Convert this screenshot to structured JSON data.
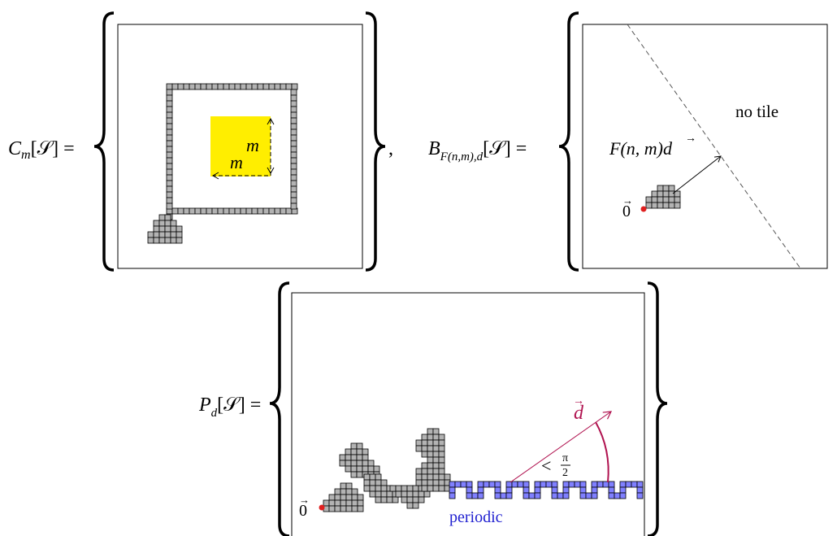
{
  "panels": {
    "C": {
      "lhs_main": "C",
      "lhs_sub": "m",
      "lhs_arg": "[𝒮] =",
      "m_vertical": "m",
      "m_horizontal": "m",
      "trailing_comma": ","
    },
    "B": {
      "lhs_main": "B",
      "lhs_sub": "F(n,m),",
      "lhs_sub_vec": "d",
      "lhs_arg": "[𝒮] =",
      "arrow_label_pre": "F(n, m)",
      "arrow_label_vec": "d",
      "region_label": "no tile",
      "origin_label": "0"
    },
    "P": {
      "lhs_main": "P",
      "lhs_sub_vec": "d",
      "lhs_arg": "[𝒮] =",
      "d_label": "d",
      "angle_lt": "<",
      "angle_num": "π",
      "angle_den": "2",
      "periodic_label": "periodic",
      "origin_label": "0"
    }
  },
  "colors": {
    "tile_fill": "#b3b3b3",
    "periodic_fill": "#8080ff",
    "square_fill": "#ffee00",
    "origin_dot": "#e02020",
    "d_arrow": "#b0124f",
    "periodic_text": "#2020d0"
  }
}
